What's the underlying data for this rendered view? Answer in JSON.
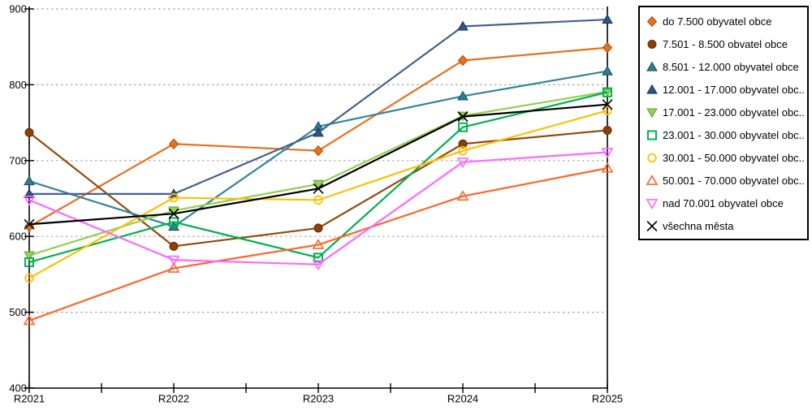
{
  "chart_data": {
    "type": "line",
    "title": "",
    "xlabel": "",
    "ylabel": "",
    "x_categories": [
      "R2021",
      "R2022",
      "R2023",
      "R2024",
      "R2025"
    ],
    "ylim": [
      400,
      900
    ],
    "yticks": [
      400,
      500,
      600,
      700,
      800,
      900
    ],
    "grid": "horizontal-dashed",
    "grid_color": "#a6a6a6",
    "axis_color": "#000000",
    "background_color": "#ffffff",
    "legend_position": "right",
    "series": [
      {
        "label": "do 7.500 obyvatel obce",
        "marker": "diamond-filled",
        "color": "#E8701A",
        "marker_fill": "#E8701A",
        "marker_stroke": "#A6500F",
        "values": [
          613,
          722,
          713,
          832,
          849
        ]
      },
      {
        "label": "7.501 - 8.500 obvatel obce",
        "marker": "circle-filled",
        "color": "#8F4A0E",
        "marker_fill": "#8C4008",
        "marker_stroke": "#5F2D06",
        "values": [
          737,
          587,
          611,
          722,
          740
        ]
      },
      {
        "label": "8.501 - 12.000 obyvatel obce",
        "marker": "triangle-up-filled",
        "color": "#31859C",
        "marker_fill": "#2E7D92",
        "marker_stroke": "#1A4E5C",
        "values": [
          673,
          613,
          745,
          785,
          818
        ]
      },
      {
        "label": "12.001 - 17.000 obyvatel obc...",
        "marker": "triangle-up-filled",
        "color": "#44618C",
        "marker_fill": "#2D5586",
        "marker_stroke": "#1B3356",
        "values": [
          656,
          656,
          737,
          877,
          886
        ]
      },
      {
        "label": "17.001 - 23.000 obyvatel obc...",
        "marker": "triangle-down-filled",
        "color": "#92D050",
        "marker_fill": "#92D050",
        "marker_stroke": "#6FA33A",
        "values": [
          575,
          634,
          669,
          759,
          791
        ]
      },
      {
        "label": "23.001 - 30.000 obyvatel obc...",
        "marker": "square-open",
        "color": "#00B050",
        "marker_fill": "none",
        "marker_stroke": "#00B050",
        "values": [
          566,
          619,
          572,
          744,
          790
        ]
      },
      {
        "label": "30.001 - 50.000 obyvatel obc...",
        "marker": "circle-open",
        "color": "#FFC000",
        "marker_fill": "none",
        "marker_stroke": "#FFC000",
        "values": [
          545,
          651,
          648,
          713,
          766
        ]
      },
      {
        "label": "50.001 - 70.000 obyvatel obc...",
        "marker": "triangle-up-open",
        "color": "#FF6529",
        "marker_fill": "none",
        "marker_stroke": "#FF6529",
        "values": [
          489,
          558,
          589,
          653,
          690
        ]
      },
      {
        "label": "nad 70.001 obyvatel obce",
        "marker": "triangle-down-open",
        "color": "#FF66FF",
        "marker_fill": "none",
        "marker_stroke": "#FF66FF",
        "values": [
          648,
          569,
          563,
          698,
          711
        ]
      },
      {
        "label": "všechna města",
        "marker": "x",
        "color": "#000000",
        "marker_fill": "none",
        "marker_stroke": "#000000",
        "values": [
          616,
          630,
          663,
          758,
          774
        ]
      }
    ]
  }
}
